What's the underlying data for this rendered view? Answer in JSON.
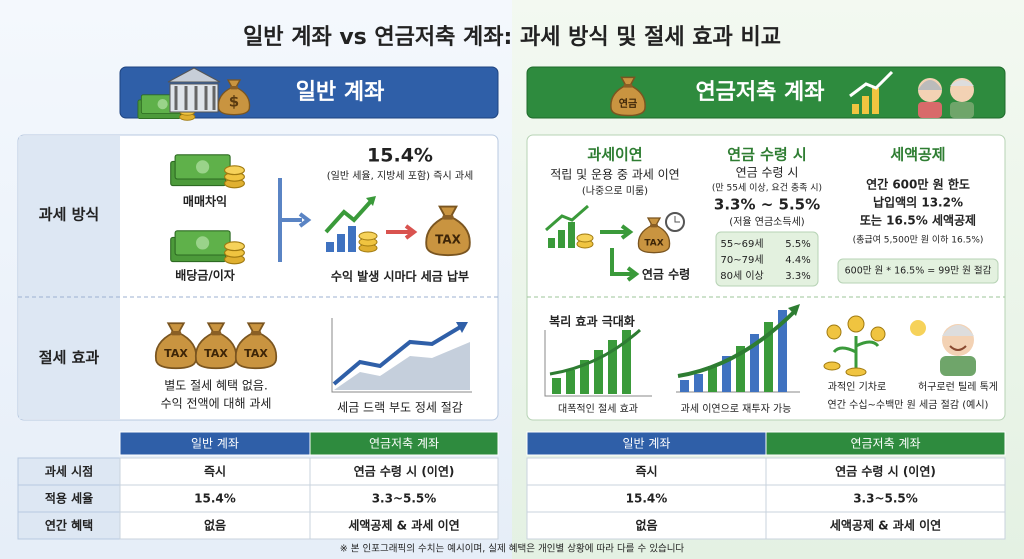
{
  "title": "일반 계좌 vs 연금저축 계좌: 과세 방식 및 절세 효과 비교",
  "general": {
    "banner": "일반 계좌",
    "row_labels": [
      "과세 방식",
      "절세 효과"
    ],
    "income_types": [
      "매매차익",
      "배당금/이자"
    ],
    "rate": "15.4%",
    "rate_note": "(일반 세율, 지방세 포함) 즉시 과세",
    "tax_bag": "TAX",
    "method_caption": "수익 발생 시마다 세금 납부",
    "saving_caption": [
      "별도 절세 혜택 없음.",
      "수익 전액에 대해 과세"
    ],
    "chart_caption": "세금 드랙 부도 정세 절감"
  },
  "pension": {
    "banner": "연금저축 계좌",
    "bag_label": "연금",
    "deferral": {
      "title": "과세이연",
      "lines": [
        "적립 및 운용 중 과세 이연",
        "(나중으로 미룸)"
      ],
      "tax_bag": "TAX",
      "receive": "연금 수령"
    },
    "receipt": {
      "title": "연금 수령 시",
      "lines": [
        "연금 수령 시",
        "(만 55세 이상, 요건 충족 시)"
      ],
      "rate": "3.3% ~ 5.5%",
      "rate_note": "(저율 연금소득세)",
      "brackets": [
        [
          "55~69세",
          "5.5%"
        ],
        [
          "70~79세",
          "4.4%"
        ],
        [
          "80세 이상",
          "3.3%"
        ]
      ]
    },
    "credit": {
      "title": "세액공제",
      "lines": [
        "연간 600만 원 한도",
        "납입액의 13.2%",
        "또는 16.5% 세액공제",
        "(총급여 5,500만 원 이하 16.5%)"
      ],
      "example": "600만 원 * 16.5% = 99만 원 절감"
    },
    "effects": {
      "compound": "복리 효과 극대화",
      "captions": [
        "대폭적인 절세 효과",
        "과세 이연으로 재투자 가능",
        "과적인 기차로",
        "허구로런 틸레 톡게"
      ],
      "summary": "연간 수십~수백만 원 세금 절감 (예시)"
    }
  },
  "general_table": {
    "header": [
      "일반 계좌",
      "연금저축 계좌"
    ],
    "row_labels": [
      "과세 시점",
      "적용 세율",
      "연간 혜택"
    ],
    "rows": [
      [
        "즉시",
        "연금 수령 시 (이연)"
      ],
      [
        "15.4%",
        "3.3~5.5%"
      ],
      [
        "없음",
        "세액공제 & 과세 이연"
      ]
    ]
  },
  "pension_table": {
    "header": [
      "일반 계좌",
      "연금저축 계좌"
    ],
    "rows": [
      [
        "즉시",
        "연금 수령 시 (이연)"
      ],
      [
        "15.4%",
        "3.3~5.5%"
      ],
      [
        "없음",
        "세액공제 & 과세 이연"
      ]
    ]
  },
  "footnote": "※ 본 인포그래픽의 수치는 예시이며, 실제 혜택은 개인별 상황에 따라 다를 수 있습니다"
}
